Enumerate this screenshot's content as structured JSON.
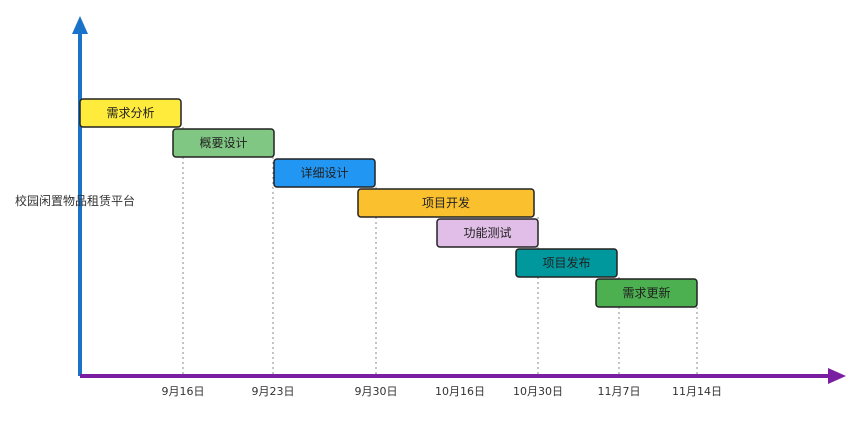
{
  "chart_data": {
    "type": "gantt",
    "ylabel": "校园闲置物品租赁平台",
    "xlabel": "",
    "grid": "dotted vertical guide lines at each task end date",
    "tasks": [
      {
        "name": "需求分析",
        "start": "9月10日",
        "end": "9月16日",
        "color": "#FFEB3B"
      },
      {
        "name": "概要设计",
        "start": "9月16日",
        "end": "9月23日",
        "color": "#81C784"
      },
      {
        "name": "详细设计",
        "start": "9月23日",
        "end": "9月30日",
        "color": "#2196F3"
      },
      {
        "name": "项目开发",
        "start": "9月30日",
        "end": "10月30日",
        "color": "#FBC02D"
      },
      {
        "name": "功能测试",
        "start": "10月16日",
        "end": "10月30日",
        "color": "#E1BEE7"
      },
      {
        "name": "项目发布",
        "start": "10月30日",
        "end": "11月7日",
        "color": "#00979D"
      },
      {
        "name": "需求更新",
        "start": "11月7日",
        "end": "11月14日",
        "color": "#4CAF50"
      }
    ],
    "ticks": [
      "9月16日",
      "9月23日",
      "9月30日",
      "10月16日",
      "10月30日",
      "11月7日",
      "11月14日"
    ],
    "axis_colors": {
      "y": "#1A73C8",
      "x": "#7B1FA2"
    }
  }
}
